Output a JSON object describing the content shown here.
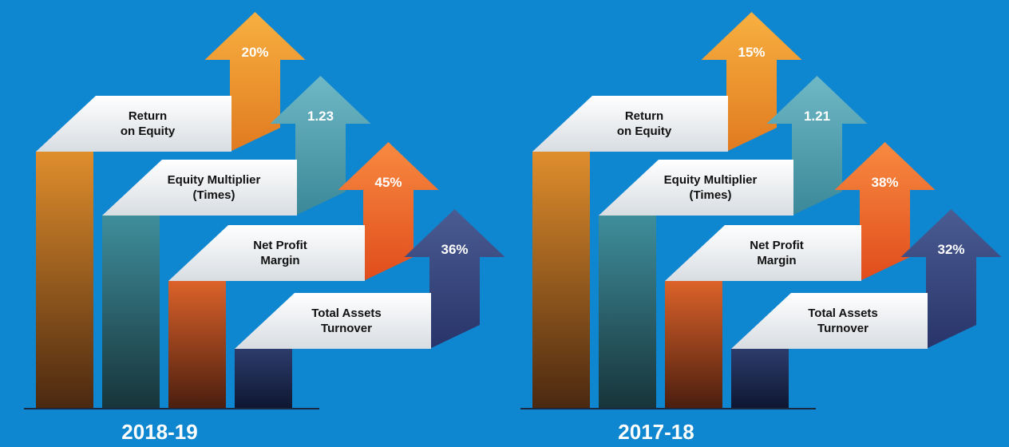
{
  "panels": [
    {
      "year": "2018-19",
      "items": [
        {
          "label": [
            "Return",
            "on Equity"
          ],
          "value": "20%"
        },
        {
          "label": [
            "Equity Multiplier",
            "(Times)"
          ],
          "value": "1.23"
        },
        {
          "label": [
            "Net Profit",
            "Margin"
          ],
          "value": "45%"
        },
        {
          "label": [
            "Total Assets",
            "Turnover"
          ],
          "value": "36%"
        }
      ]
    },
    {
      "year": "2017-18",
      "items": [
        {
          "label": [
            "Return",
            "on Equity"
          ],
          "value": "15%"
        },
        {
          "label": [
            "Equity Multiplier",
            "(Times)"
          ],
          "value": "1.21"
        },
        {
          "label": [
            "Net Profit",
            "Margin"
          ],
          "value": "38%"
        },
        {
          "label": [
            "Total Assets",
            "Turnover"
          ],
          "value": "32%"
        }
      ]
    }
  ]
}
